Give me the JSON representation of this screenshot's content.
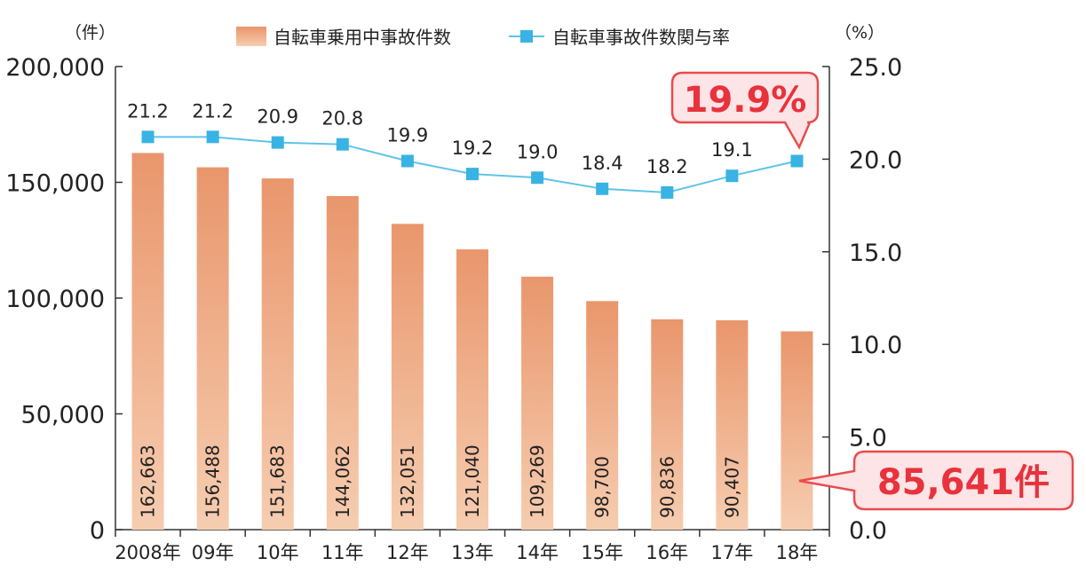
{
  "chart_data": {
    "type": "bar+line",
    "categories": [
      "2008年",
      "09年",
      "10年",
      "11年",
      "12年",
      "13年",
      "14年",
      "15年",
      "16年",
      "17年",
      "18年"
    ],
    "series": [
      {
        "name": "自転車乗用中事故件数",
        "type": "bar",
        "axis": "left",
        "values": [
          162663,
          156488,
          151683,
          144062,
          132051,
          121040,
          109269,
          98700,
          90836,
          90407,
          85641
        ],
        "labels": [
          "162,663",
          "156,488",
          "151,683",
          "144,062",
          "132,051",
          "121,040",
          "109,269",
          "98,700",
          "90,836",
          "90,407",
          ""
        ]
      },
      {
        "name": "自転車事故件数関与率",
        "type": "line",
        "axis": "right",
        "values": [
          21.2,
          21.2,
          20.9,
          20.8,
          19.9,
          19.2,
          19.0,
          18.4,
          18.2,
          19.1,
          19.9
        ],
        "labels": [
          "21.2",
          "21.2",
          "20.9",
          "20.8",
          "19.9",
          "19.2",
          "19.0",
          "18.4",
          "18.2",
          "19.1",
          ""
        ]
      }
    ],
    "y_left": {
      "unit_label": "（件）",
      "range": [
        0,
        200000
      ],
      "ticks": [
        0,
        50000,
        100000,
        150000,
        200000
      ],
      "tick_labels": [
        "0",
        "50,000",
        "100,000",
        "150,000",
        "200,000"
      ]
    },
    "y_right": {
      "unit_label": "（%）",
      "range": [
        0,
        25
      ],
      "ticks": [
        0,
        5,
        10,
        15,
        20,
        25
      ],
      "tick_labels": [
        "0.0",
        "5.0",
        "10.0",
        "15.0",
        "20.0",
        "25.0"
      ]
    },
    "legend_position": "top-center",
    "callouts": {
      "rate": "19.9%",
      "count": "85,641件"
    },
    "colors": {
      "bar_top": "#e9966c",
      "bar_bottom": "#f6cdb0",
      "line": "#5ec4e6",
      "marker": "#39b3e3",
      "callout_text": "#e8323c",
      "callout_border": "#e84c4c",
      "callout_fill": "#fde4e6"
    }
  }
}
